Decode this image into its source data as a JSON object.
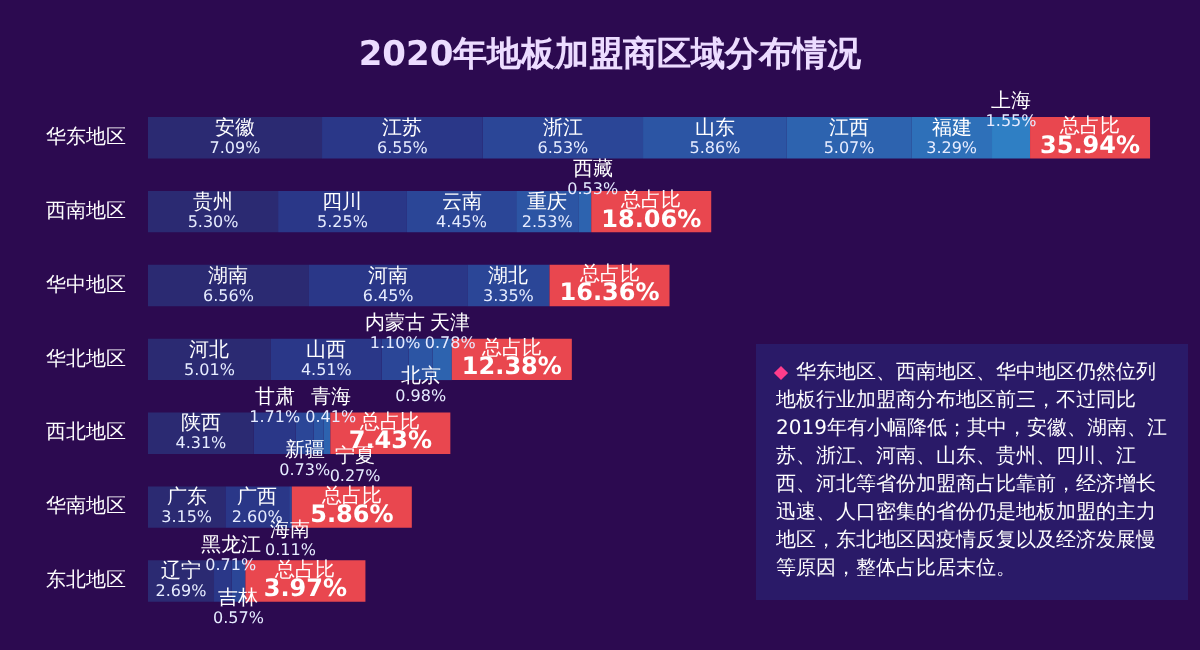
{
  "chart_data": {
    "type": "bar",
    "orientation": "horizontal",
    "stacked": true,
    "title": "2020年地板加盟商区域分布情况",
    "legend": false,
    "categories": [
      "华东地区",
      "西南地区",
      "华中地区",
      "华北地区",
      "西北地区",
      "华南地区",
      "东北地区"
    ],
    "series": [
      {
        "color": "#2b2a72",
        "values": [
          7.09,
          5.3,
          6.56,
          5.01,
          4.31,
          3.15,
          2.69
        ],
        "value_labels": [
          "安徽 7.09%",
          "贵州 5.30%",
          "湖南 6.56%",
          "河北 5.01%",
          "陕西 4.31%",
          "广东 3.15%",
          "辽宁 2.69%"
        ]
      },
      {
        "color": "#2a3788",
        "values": [
          6.55,
          5.25,
          6.45,
          4.51,
          1.71,
          2.6,
          0.71
        ],
        "value_labels": [
          "江苏 6.55%",
          "四川 5.25%",
          "河南 6.45%",
          "山西 4.51%",
          "甘肃 1.71%",
          "广西 2.60%",
          "黑龙江 0.71%"
        ]
      },
      {
        "color": "#2b4697",
        "values": [
          6.53,
          4.45,
          3.35,
          1.1,
          0.73,
          0.11,
          0.57
        ],
        "value_labels": [
          "浙江 6.53%",
          "云南 4.45%",
          "湖北 3.35%",
          "内蒙古 1.10%",
          "新疆 0.73%",
          "海南 0.11%",
          "吉林 0.57%"
        ]
      },
      {
        "color": "#2c55a4",
        "values": [
          5.86,
          2.53,
          null,
          0.98,
          0.41,
          null,
          null
        ],
        "value_labels": [
          "山东 5.86%",
          "重庆 2.53%",
          null,
          "北京 0.98%",
          "青海 0.41%",
          null,
          null
        ]
      },
      {
        "color": "#2d63af",
        "values": [
          5.07,
          0.53,
          null,
          0.78,
          0.27,
          null,
          null
        ],
        "value_labels": [
          "江西 5.07%",
          "西藏 0.53%",
          null,
          "天津 0.78%",
          "宁夏 0.27%",
          null,
          null
        ]
      },
      {
        "color": "#2e70b9",
        "values": [
          3.29,
          null,
          null,
          null,
          null,
          null,
          null
        ],
        "value_labels": [
          "福建 3.29%",
          null,
          null,
          null,
          null,
          null,
          null
        ]
      },
      {
        "color": "#2f7fc4",
        "values": [
          1.55,
          null,
          null,
          null,
          null,
          null,
          null
        ],
        "value_labels": [
          "上海 1.55%",
          null,
          null,
          null,
          null,
          null,
          null
        ]
      }
    ],
    "totals": [
      "总占比 35.94%",
      "总占比 18.06%",
      "总占比 16.36%",
      "总占比 12.38%",
      "总占比 7.43%",
      "总占比 5.86%",
      "总占比 3.97%"
    ],
    "annotations": [
      "华东地区、西南地区、华中地区仍然位列地板行业加盟商分布地区前三，不过同比2019年有小幅降低；其中，安徽、湖南、江苏、浙江、河南、山东、贵州、四川、江西、河北等省份加盟商占比靠前，经济增长迅速、人口密集的省份仍是地板加盟的主力地区，东北地区因疫情反复以及经济发展慢等原因，整体占比居末位。"
    ]
  }
}
